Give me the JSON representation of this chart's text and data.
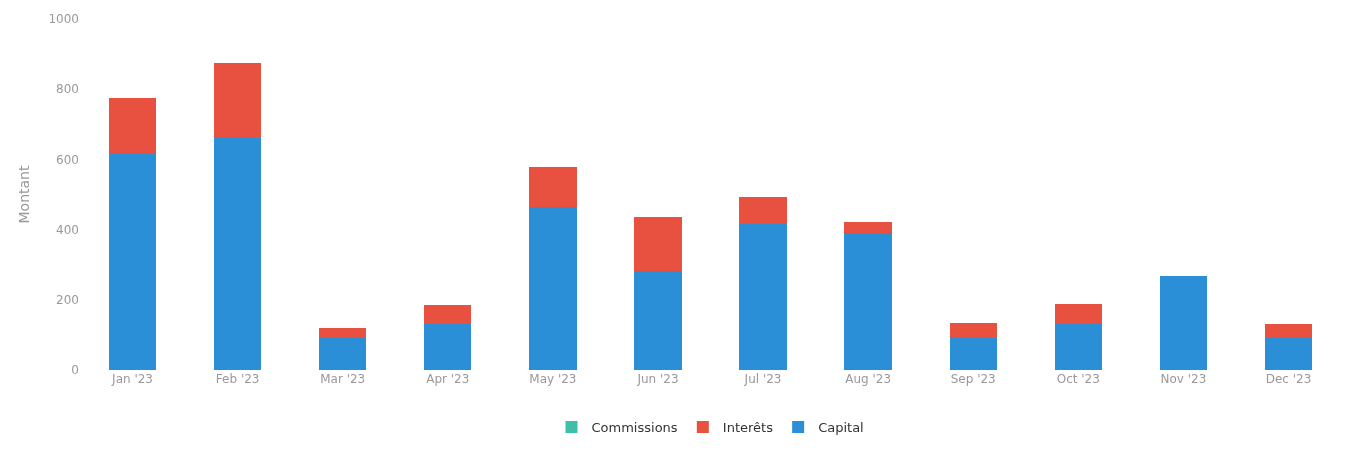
{
  "chart_data": {
    "type": "bar",
    "stacked": true,
    "ylabel": "Montant",
    "categories": [
      "Jan '23",
      "Feb '23",
      "Mar '23",
      "Apr '23",
      "May '23",
      "Jun '23",
      "Jul '23",
      "Aug '23",
      "Sep '23",
      "Oct '23",
      "Nov '23",
      "Dec '23"
    ],
    "series": [
      {
        "name": "Capital",
        "color": "#2a8fd6",
        "values": [
          616,
          661,
          93,
          131,
          464,
          283,
          416,
          389,
          91,
          131,
          269,
          91
        ]
      },
      {
        "name": "Interêts",
        "color": "#e8513f",
        "values": [
          160,
          214,
          27,
          53,
          115,
          154,
          77,
          32,
          42,
          58,
          0,
          40
        ]
      },
      {
        "name": "Commissions",
        "color": "#3fbfa8",
        "values": [
          0,
          0,
          0,
          0,
          0,
          0,
          0,
          0,
          0,
          0,
          0,
          0
        ]
      }
    ],
    "ylim": [
      0,
      1000
    ],
    "yticks": [
      0,
      200,
      400,
      600,
      800,
      1000
    ],
    "grid": false,
    "legend": "bottom"
  }
}
